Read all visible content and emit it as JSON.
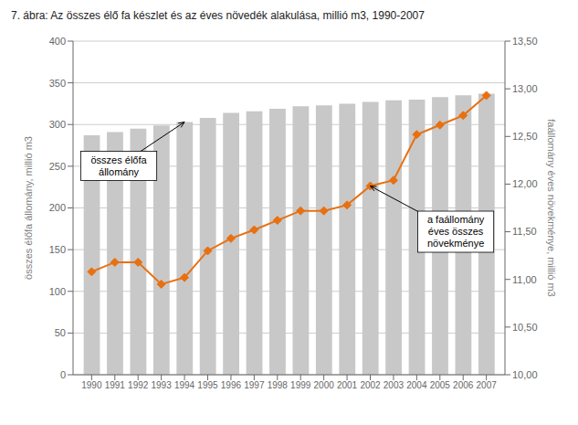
{
  "chart_data": {
    "type": "bar",
    "title": "7. ábra: Az összes élő fa készlet és az éves növedék alakulása, millió m3, 1990-2007",
    "x": [
      1990,
      1991,
      1992,
      1993,
      1994,
      1995,
      1996,
      1997,
      1998,
      1999,
      2000,
      2001,
      2002,
      2003,
      2004,
      2005,
      2006,
      2007
    ],
    "xlim": [
      1989.2,
      2007.8
    ],
    "xticks": [
      1990,
      1991,
      1992,
      1993,
      1994,
      1995,
      1996,
      1997,
      1998,
      1999,
      2000,
      2001,
      2002,
      2003,
      2004,
      2005,
      2006,
      2007
    ],
    "ylabel": "összes élőfa állomány, millió m3",
    "ylim": [
      0,
      400
    ],
    "yticks": [
      0,
      50,
      100,
      150,
      200,
      250,
      300,
      350,
      400
    ],
    "y2label": "faállomány éves növekménye, millió m3",
    "y2lim": [
      10.0,
      13.5
    ],
    "y2ticks": [
      {
        "value": 10.0,
        "label": "10,00"
      },
      {
        "value": 10.5,
        "label": "10,50"
      },
      {
        "value": 11.0,
        "label": "11,00"
      },
      {
        "value": 11.5,
        "label": "11,50"
      },
      {
        "value": 12.0,
        "label": "12,00"
      },
      {
        "value": 12.5,
        "label": "12,50"
      },
      {
        "value": 13.0,
        "label": "13,00"
      },
      {
        "value": 13.5,
        "label": "13,50"
      }
    ],
    "grid": true,
    "series": [
      {
        "type": "bar",
        "color": "#c8c8c8",
        "values": [
          287,
          291,
          295,
          299,
          303,
          308,
          314,
          316,
          319,
          322,
          323,
          325,
          327,
          329,
          330,
          333,
          335,
          337
        ]
      },
      {
        "type": "line",
        "axis": "y2",
        "color": "#e87010",
        "marker": "diamond",
        "values": [
          11.08,
          11.18,
          11.18,
          10.95,
          11.02,
          11.3,
          11.43,
          11.52,
          11.62,
          11.72,
          11.72,
          11.78,
          11.98,
          12.04,
          12.52,
          12.62,
          12.72,
          12.93
        ]
      }
    ],
    "annotations": [
      {
        "text": "összes élőfa\nállomány",
        "x": 1994,
        "y": 303,
        "axis": "y"
      },
      {
        "text": "a faállomány\néves összes\nnövekménye",
        "x": 2002,
        "y": 11.98,
        "axis": "y2"
      }
    ]
  }
}
